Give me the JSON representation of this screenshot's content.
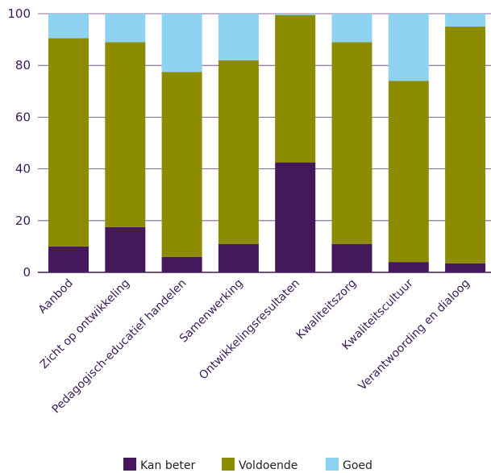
{
  "chart_data": {
    "type": "bar",
    "stacked": true,
    "orientation": "vertical",
    "title": "",
    "xlabel": "",
    "ylabel": "",
    "ylim": [
      0,
      100
    ],
    "yticks": [
      0,
      20,
      40,
      60,
      80,
      100
    ],
    "grid": true,
    "legend_position": "bottom",
    "categories": [
      "Aanbod",
      "Zicht op ontwikkeling",
      "Pedagogisch-educatief handelen",
      "Samenwerking",
      "Ontwikkelingsresultaten",
      "Kwaliteitszorg",
      "Kwaliteitscultuur",
      "Verantwoording en dialoog"
    ],
    "series": [
      {
        "name": "Kan beter",
        "color": "#44185a",
        "values": [
          10,
          17.5,
          6,
          11,
          42.5,
          11,
          4,
          3.5
        ]
      },
      {
        "name": "Voldoende",
        "color": "#8c8c00",
        "values": [
          80.5,
          71.5,
          71.5,
          71,
          57,
          78,
          70,
          91.5
        ]
      },
      {
        "name": "Goed",
        "color": "#8fd3f2",
        "values": [
          9.5,
          11,
          22.5,
          18,
          0.5,
          11,
          26,
          5
        ]
      }
    ]
  }
}
